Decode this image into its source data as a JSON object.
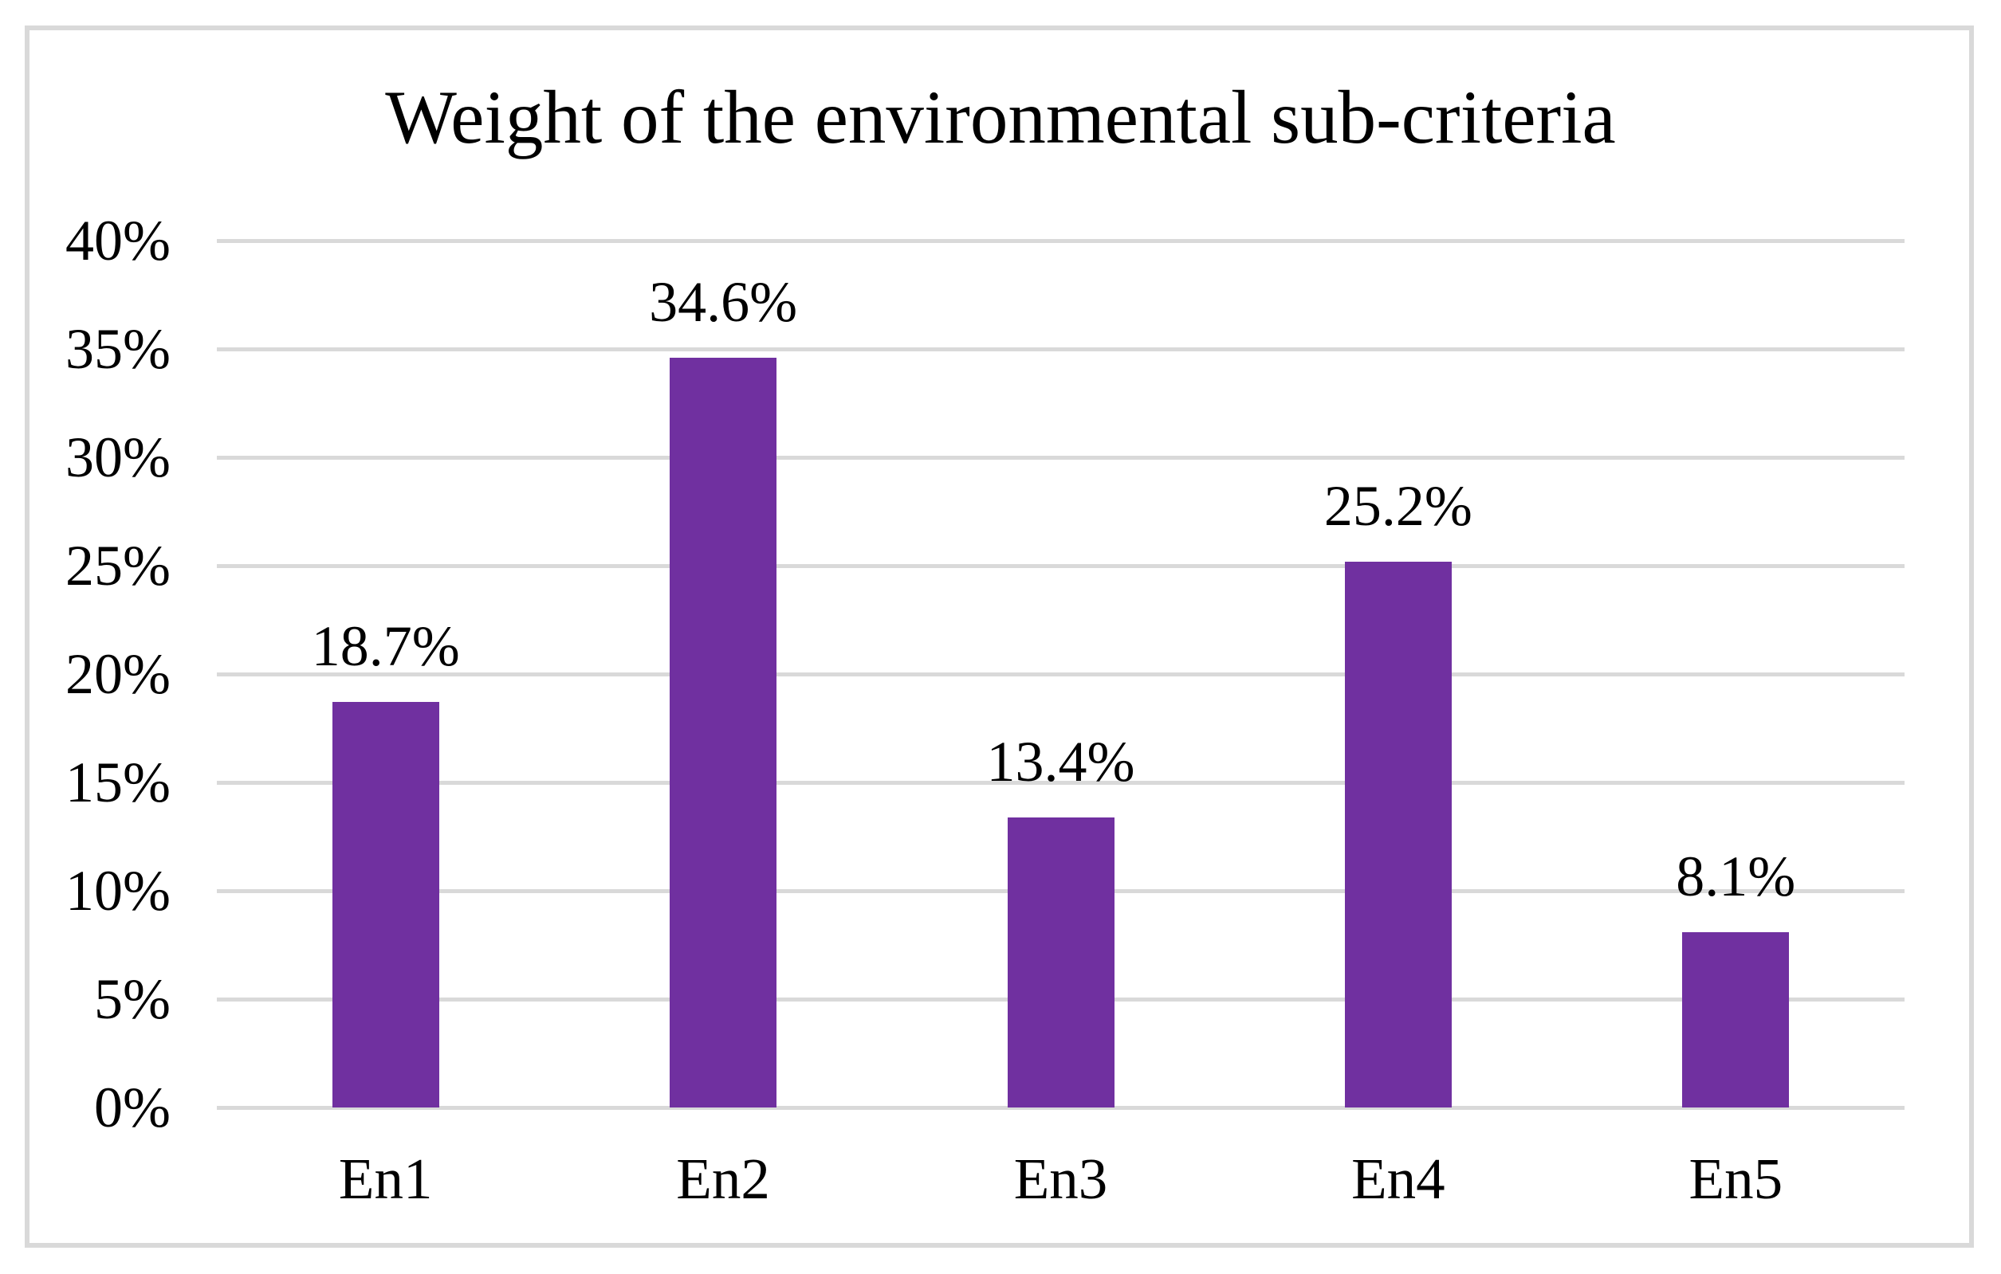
{
  "frame": {
    "border_color": "#d9d9d9"
  },
  "chart_data": {
    "type": "bar",
    "title": "Weight of the environmental sub-criteria",
    "categories": [
      "En1",
      "En2",
      "En3",
      "En4",
      "En5"
    ],
    "values": [
      18.7,
      34.6,
      13.4,
      25.2,
      8.1
    ],
    "value_labels": [
      "18.7%",
      "34.6%",
      "13.4%",
      "25.2%",
      "8.1%"
    ],
    "y_ticks": [
      "0%",
      "5%",
      "10%",
      "15%",
      "20%",
      "25%",
      "30%",
      "35%",
      "40%"
    ],
    "y_tick_values": [
      0,
      5,
      10,
      15,
      20,
      25,
      30,
      35,
      40
    ],
    "ylim": [
      0,
      40
    ],
    "xlabel": "",
    "ylabel": "",
    "grid": true,
    "legend": false,
    "bar_color": "#7030a0",
    "gridline_color": "#d9d9d9",
    "text_color": "#000000",
    "background_color": "#ffffff"
  }
}
